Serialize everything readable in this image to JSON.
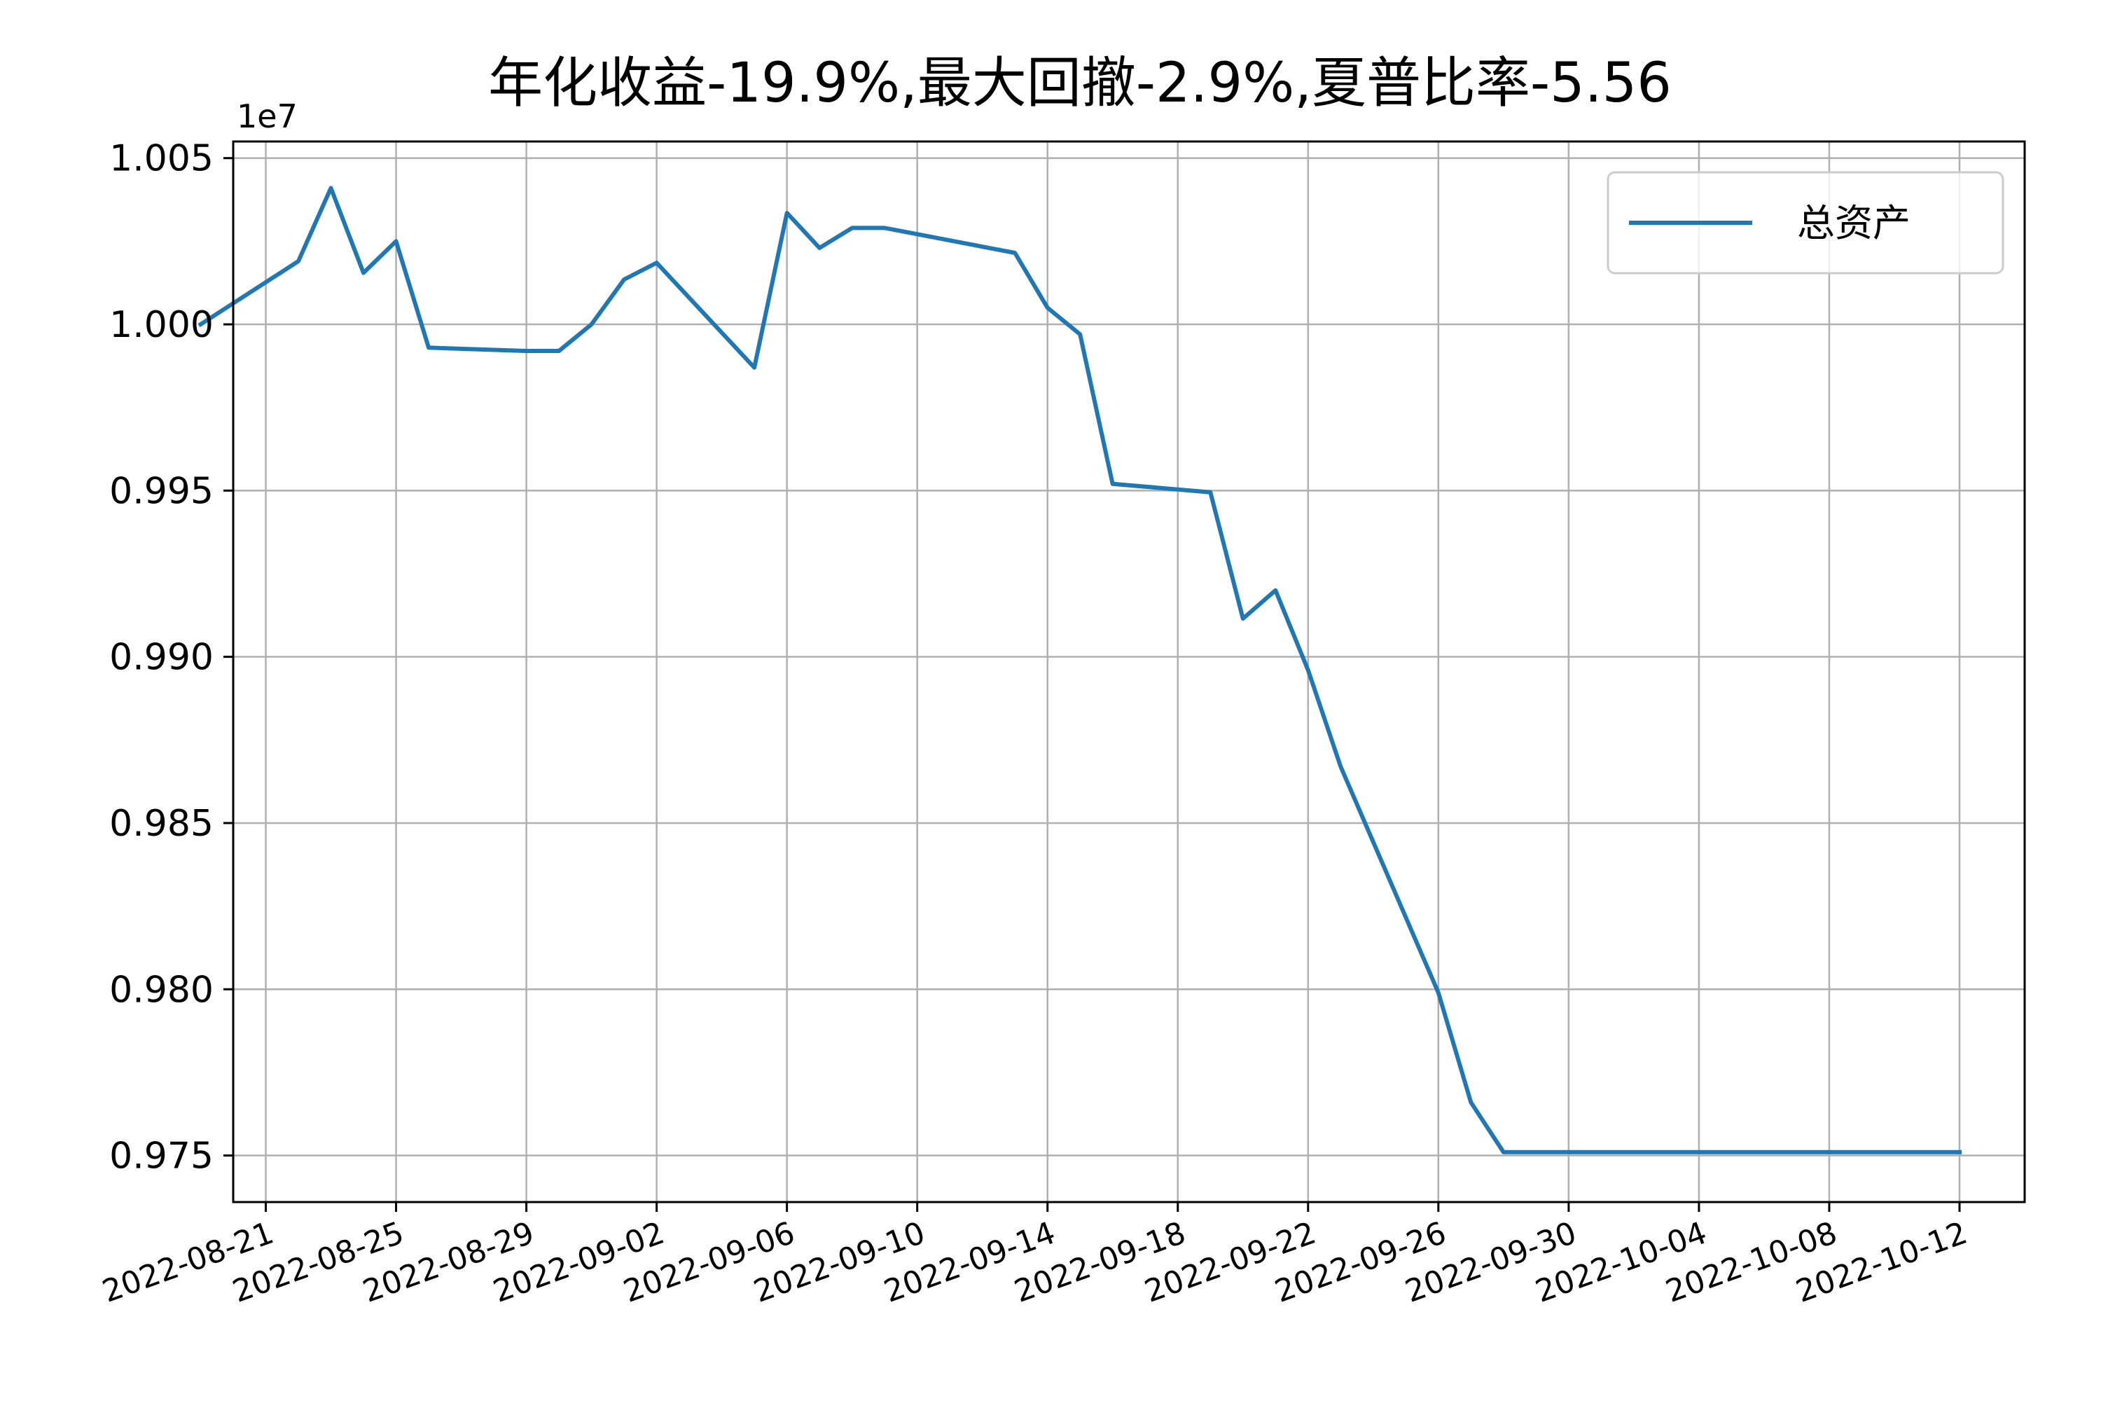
{
  "chart_data": {
    "type": "line",
    "title": "年化收益-19.9%,最大回撤-2.9%,夏普比率-5.56",
    "xlabel": "",
    "ylabel": "",
    "y_offset_label": "1e7",
    "x_tick_labels": [
      "2022-08-21",
      "2022-08-25",
      "2022-08-29",
      "2022-09-02",
      "2022-09-06",
      "2022-09-10",
      "2022-09-14",
      "2022-09-18",
      "2022-09-22",
      "2022-09-26",
      "2022-09-30",
      "2022-10-04",
      "2022-10-08",
      "2022-10-12"
    ],
    "y_tick_labels": [
      "0.975",
      "0.980",
      "0.985",
      "0.990",
      "0.995",
      "1.000",
      "1.005"
    ],
    "x_range": [
      "2022-08-20",
      "2022-10-14"
    ],
    "y_range": [
      9736000,
      10055000
    ],
    "grid": true,
    "legend_position": "top-right",
    "colors": {
      "series": "#1f77b4",
      "grid": "#b0b0b0",
      "axis": "#000000"
    },
    "series": [
      {
        "name": "总资产",
        "x": [
          "2022-08-19",
          "2022-08-22",
          "2022-08-23",
          "2022-08-24",
          "2022-08-25",
          "2022-08-26",
          "2022-08-29",
          "2022-08-30",
          "2022-08-31",
          "2022-09-01",
          "2022-09-02",
          "2022-09-05",
          "2022-09-06",
          "2022-09-07",
          "2022-09-08",
          "2022-09-09",
          "2022-09-13",
          "2022-09-14",
          "2022-09-15",
          "2022-09-16",
          "2022-09-19",
          "2022-09-20",
          "2022-09-21",
          "2022-09-22",
          "2022-09-23",
          "2022-09-26",
          "2022-09-27",
          "2022-09-28",
          "2022-09-29",
          "2022-09-30",
          "2022-10-10",
          "2022-10-11",
          "2022-10-12"
        ],
        "values": [
          10000000,
          10019000,
          10041000,
          10015500,
          10025000,
          9993000,
          9992000,
          9992000,
          10000000,
          10013500,
          10018500,
          9987000,
          10033500,
          10023000,
          10029000,
          10029000,
          10021500,
          10005000,
          9997000,
          9952000,
          9949500,
          9911500,
          9920000,
          9896000,
          9867000,
          9799000,
          9766000,
          9751000,
          9751000,
          9751000,
          9751000,
          9751000,
          9751000
        ]
      }
    ]
  }
}
